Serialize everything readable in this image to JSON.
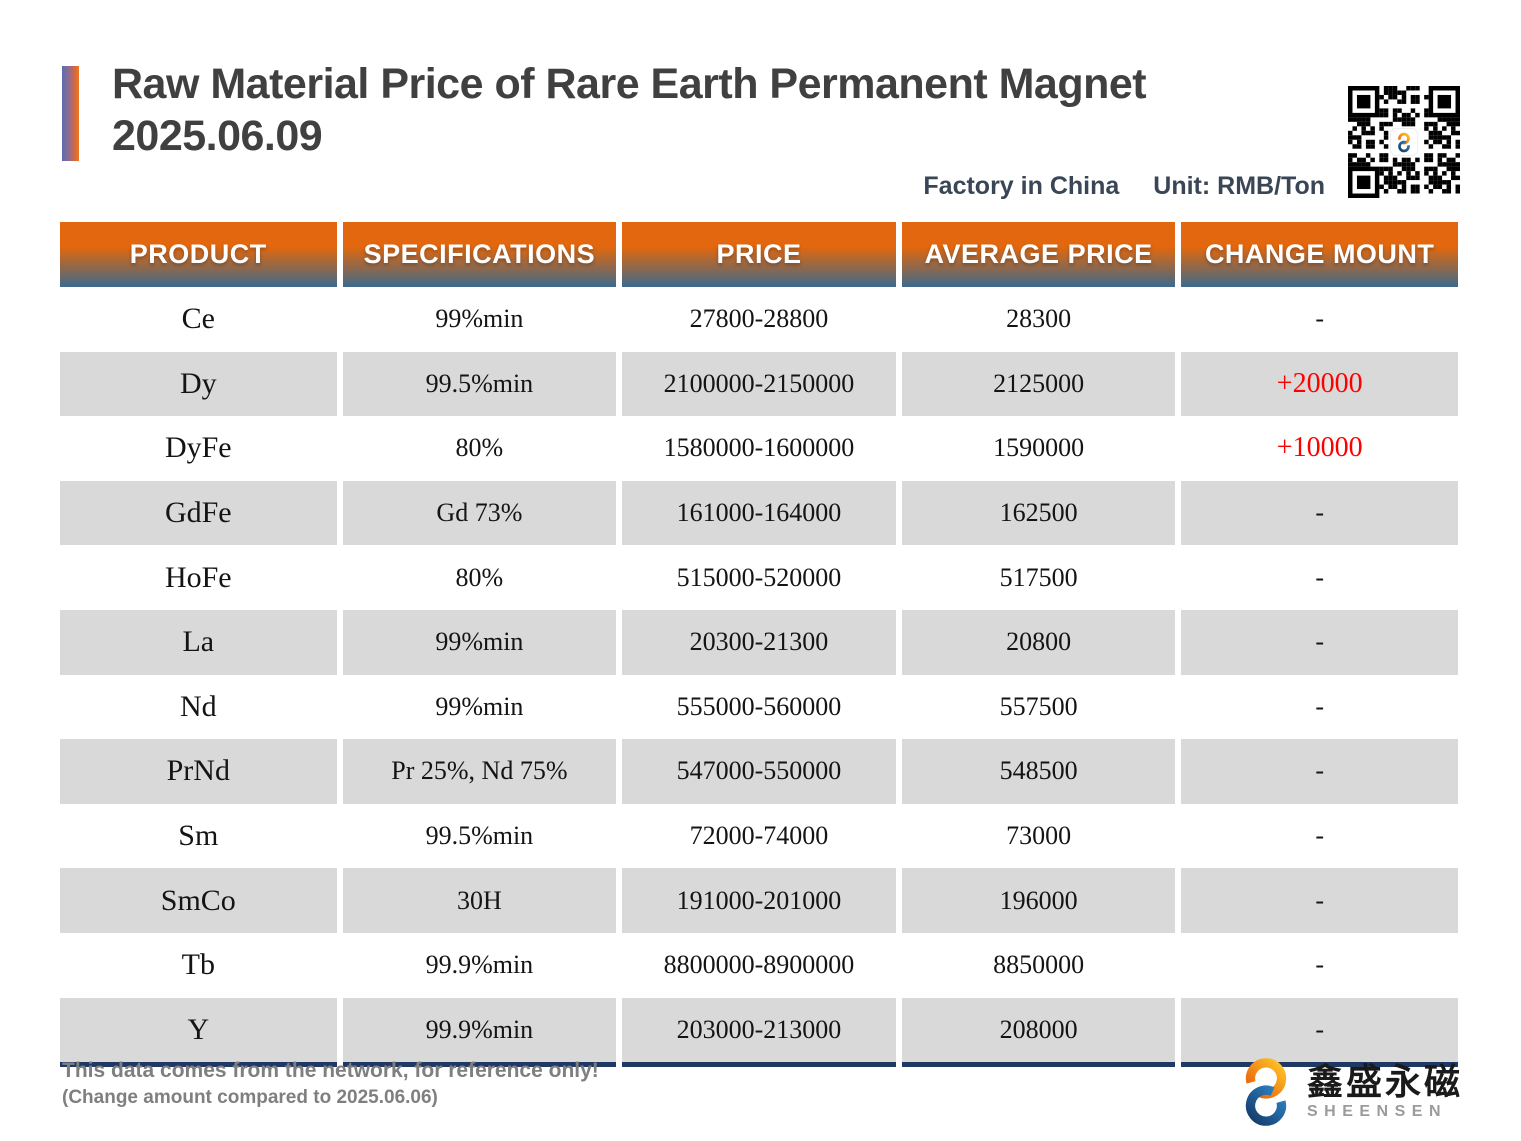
{
  "header": {
    "title_line1": "Raw Material Price of Rare Earth Permanent Magnet",
    "title_line2": "2025.06.09",
    "factory": "Factory in China",
    "unit": "Unit: RMB/Ton"
  },
  "table": {
    "columns": [
      "PRODUCT",
      "SPECIFICATIONS",
      "PRICE",
      "AVERAGE PRICE",
      "CHANGE MOUNT"
    ],
    "rows": [
      {
        "product": "Ce",
        "spec": "99%min",
        "price": "27800-28800",
        "avg": "28300",
        "change": "-"
      },
      {
        "product": "Dy",
        "spec": "99.5%min",
        "price": "2100000-2150000",
        "avg": "2125000",
        "change": "+20000"
      },
      {
        "product": "DyFe",
        "spec": "80%",
        "price": "1580000-1600000",
        "avg": "1590000",
        "change": "+10000"
      },
      {
        "product": "GdFe",
        "spec": "Gd 73%",
        "price": "161000-164000",
        "avg": "162500",
        "change": "-"
      },
      {
        "product": "HoFe",
        "spec": "80%",
        "price": "515000-520000",
        "avg": "517500",
        "change": "-"
      },
      {
        "product": "La",
        "spec": "99%min",
        "price": "20300-21300",
        "avg": "20800",
        "change": "-"
      },
      {
        "product": "Nd",
        "spec": "99%min",
        "price": "555000-560000",
        "avg": "557500",
        "change": "-"
      },
      {
        "product": "PrNd",
        "spec": "Pr 25%, Nd 75%",
        "price": "547000-550000",
        "avg": "548500",
        "change": "-"
      },
      {
        "product": "Sm",
        "spec": "99.5%min",
        "price": "72000-74000",
        "avg": "73000",
        "change": "-"
      },
      {
        "product": "SmCo",
        "spec": "30H",
        "price": "191000-201000",
        "avg": "196000",
        "change": "-"
      },
      {
        "product": "Tb",
        "spec": "99.9%min",
        "price": "8800000-8900000",
        "avg": "8850000",
        "change": "-"
      },
      {
        "product": "Y",
        "spec": "99.9%min",
        "price": "203000-213000",
        "avg": "208000",
        "change": "-"
      }
    ]
  },
  "footer": {
    "note1": "This data comes from the network, for reference only!",
    "note2": "(Change amount compared to 2025.06.06)",
    "brand_cn": "鑫盛永磁",
    "brand_en": "SHEENSEN"
  },
  "colors": {
    "header_gradient_orange": "#E2670E",
    "header_gradient_blue": "#3C6A8E",
    "row_alternate_gray": "#D9D9D9",
    "change_up_red": "#FF0000",
    "table_bottom_navy": "#1F3864",
    "subtitle_text": "#3A4656",
    "brand_orange": "#F5A11C",
    "brand_blue": "#1E5C9E"
  }
}
